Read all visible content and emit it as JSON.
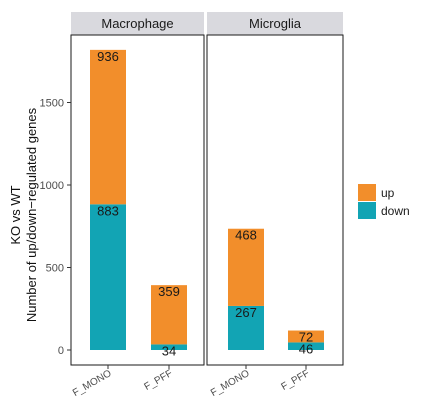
{
  "chart_data": {
    "type": "bar",
    "stacked": true,
    "facets": [
      "Macrophage",
      "Microglia"
    ],
    "categories": [
      "F_MONO",
      "F_PFF"
    ],
    "series": [
      {
        "name": "down",
        "color": "#12a4b4",
        "values": {
          "Macrophage": [
            883,
            34
          ],
          "Microglia": [
            267,
            46
          ]
        }
      },
      {
        "name": "up",
        "color": "#f28e2b",
        "values": {
          "Macrophage": [
            936,
            359
          ],
          "Microglia": [
            468,
            72
          ]
        }
      }
    ],
    "ylabel_line1": "KO vs WT",
    "ylabel_line2": "Number of up/down−regulated genes",
    "yticks": [
      0,
      500,
      1000,
      1500
    ],
    "ylim": [
      0,
      1850
    ],
    "legend_position": "right",
    "grid": false
  }
}
